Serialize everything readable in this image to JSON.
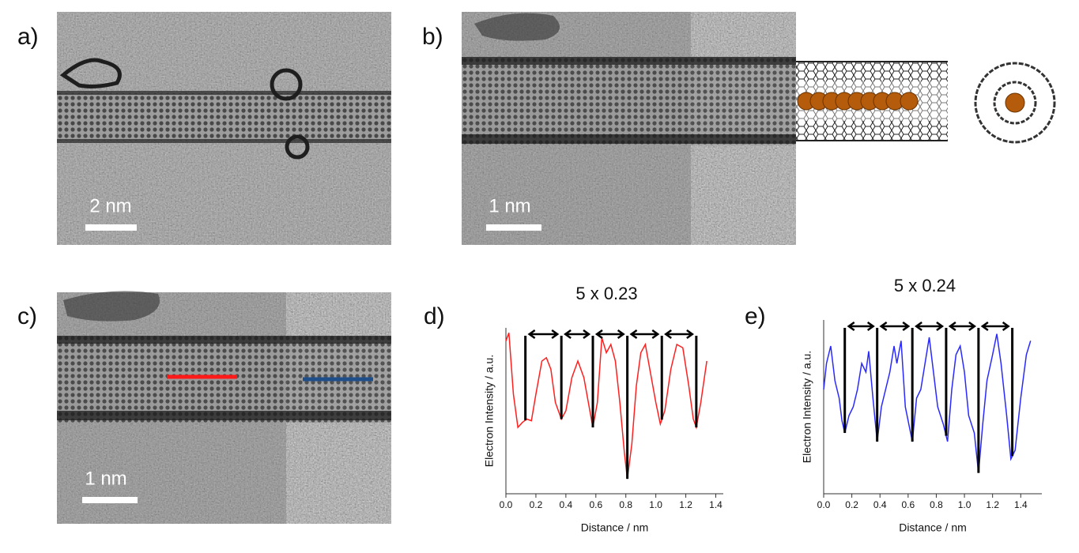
{
  "panels": {
    "a": {
      "label": "a)",
      "scale_bar": "2 nm"
    },
    "b": {
      "label": "b)",
      "scale_bar": "1 nm"
    },
    "c": {
      "label": "c)",
      "scale_bar": "1 nm"
    },
    "d": {
      "label": "d)"
    },
    "e": {
      "label": "e)"
    }
  },
  "chart_data": [
    {
      "type": "line",
      "title": "5 x 0.23",
      "x_label": "Distance / nm",
      "y_label": "Electron Intensity / a.u.",
      "color": "#ff2020",
      "x": [
        0.0,
        0.02,
        0.05,
        0.08,
        0.11,
        0.14,
        0.17,
        0.2,
        0.24,
        0.27,
        0.3,
        0.33,
        0.37,
        0.4,
        0.44,
        0.48,
        0.52,
        0.55,
        0.58,
        0.61,
        0.64,
        0.67,
        0.7,
        0.73,
        0.76,
        0.79,
        0.81,
        0.84,
        0.87,
        0.9,
        0.93,
        0.96,
        1.0,
        1.03,
        1.06,
        1.1,
        1.14,
        1.18,
        1.22,
        1.25,
        1.27,
        1.3,
        1.34
      ],
      "values": [
        0.92,
        0.97,
        0.6,
        0.4,
        0.43,
        0.45,
        0.44,
        0.6,
        0.8,
        0.82,
        0.75,
        0.55,
        0.45,
        0.5,
        0.7,
        0.8,
        0.7,
        0.55,
        0.4,
        0.55,
        0.94,
        0.85,
        0.9,
        0.8,
        0.55,
        0.25,
        0.09,
        0.3,
        0.65,
        0.85,
        0.9,
        0.75,
        0.55,
        0.42,
        0.5,
        0.75,
        0.9,
        0.88,
        0.65,
        0.45,
        0.4,
        0.55,
        0.8
      ],
      "markers": [
        0.13,
        0.37,
        0.58,
        0.81,
        1.04,
        1.27
      ],
      "xlim": [
        0,
        1.45
      ],
      "ylim": [
        0,
        1
      ],
      "xticks": [
        {
          "value": 0,
          "label": "0.0"
        },
        0.2,
        0.4,
        0.6,
        0.8,
        {
          "value": 1,
          "label": "1.0"
        },
        1.2,
        1.4
      ]
    },
    {
      "type": "line",
      "title": "5 x 0.24",
      "x_label": "Distance / nm",
      "y_label": "Electron Intensity / a.u.",
      "color": "#2a2aff",
      "x": [
        0.0,
        0.02,
        0.05,
        0.08,
        0.11,
        0.13,
        0.15,
        0.18,
        0.21,
        0.24,
        0.27,
        0.3,
        0.32,
        0.35,
        0.38,
        0.41,
        0.44,
        0.47,
        0.5,
        0.52,
        0.55,
        0.58,
        0.63,
        0.66,
        0.69,
        0.72,
        0.75,
        0.78,
        0.81,
        0.85,
        0.88,
        0.91,
        0.94,
        0.97,
        1.0,
        1.03,
        1.07,
        1.1,
        1.13,
        1.16,
        1.2,
        1.23,
        1.26,
        1.3,
        1.33,
        1.36,
        1.4,
        1.44,
        1.47
      ],
      "values": [
        0.6,
        0.75,
        0.85,
        0.65,
        0.55,
        0.42,
        0.35,
        0.45,
        0.5,
        0.6,
        0.75,
        0.7,
        0.82,
        0.55,
        0.3,
        0.5,
        0.6,
        0.7,
        0.85,
        0.75,
        0.88,
        0.5,
        0.3,
        0.55,
        0.6,
        0.75,
        0.9,
        0.7,
        0.5,
        0.4,
        0.3,
        0.6,
        0.8,
        0.85,
        0.7,
        0.45,
        0.35,
        0.12,
        0.4,
        0.65,
        0.8,
        0.92,
        0.75,
        0.45,
        0.2,
        0.25,
        0.55,
        0.8,
        0.88
      ],
      "markers": [
        0.15,
        0.38,
        0.63,
        0.87,
        1.1,
        1.34
      ],
      "xlim": [
        0,
        1.55
      ],
      "ylim": [
        0,
        1
      ],
      "xticks": [
        {
          "value": 0,
          "label": "0.0"
        },
        0.2,
        0.4,
        0.6,
        0.8,
        {
          "value": 1,
          "label": "1.0"
        },
        1.2,
        1.4
      ]
    }
  ]
}
